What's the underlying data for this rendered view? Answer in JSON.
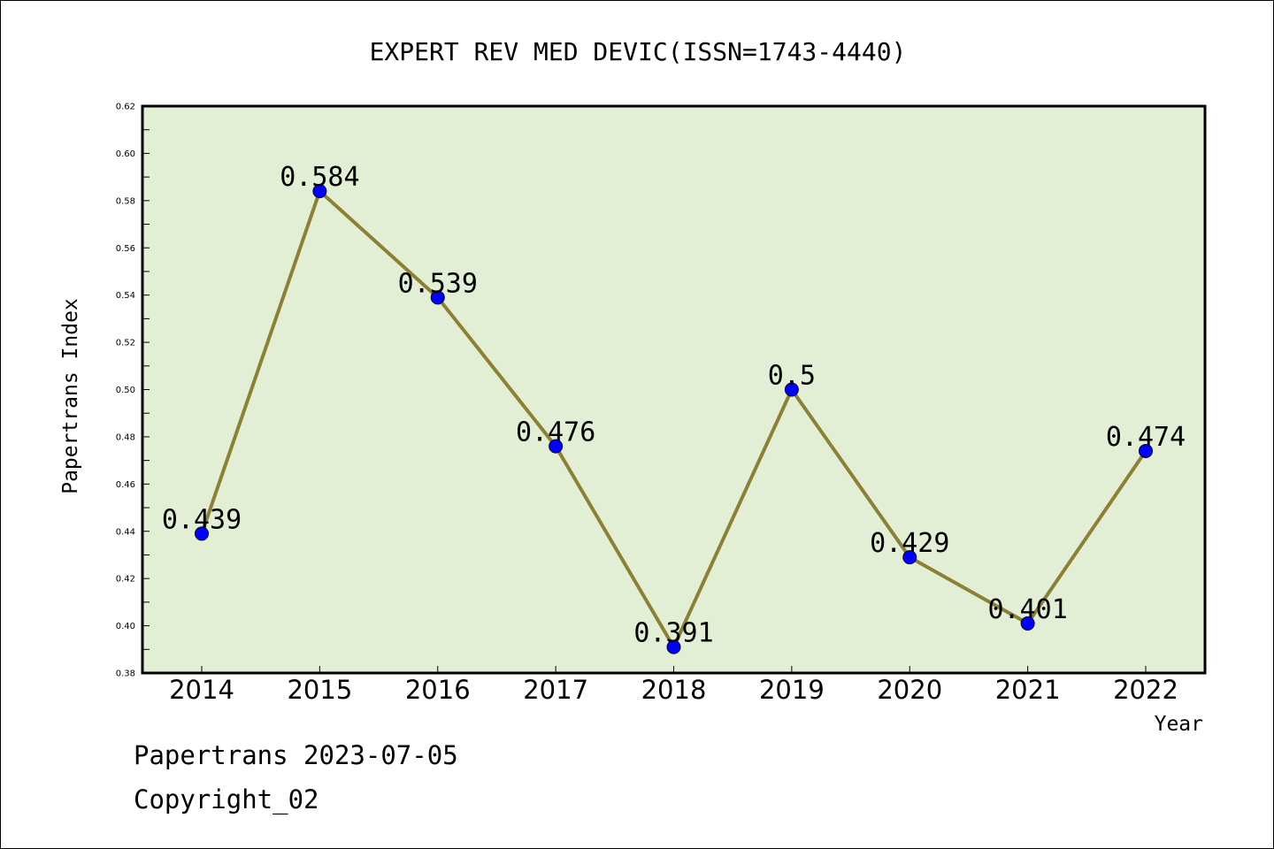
{
  "chart_data": {
    "type": "line",
    "title": "EXPERT REV MED DEVIC(ISSN=1743-4440)",
    "xlabel": "Year",
    "ylabel": "Papertrans Index",
    "categories": [
      "2014",
      "2015",
      "2016",
      "2017",
      "2018",
      "2019",
      "2020",
      "2021",
      "2022"
    ],
    "series": [
      {
        "values": [
          0.439,
          0.584,
          0.539,
          0.476,
          0.391,
          0.5,
          0.429,
          0.401,
          0.474
        ],
        "data_labels": [
          "0.439",
          "0.584",
          "0.539",
          "0.476",
          "0.391",
          "0.5",
          "0.429",
          "0.401",
          "0.474"
        ]
      }
    ],
    "ylim": [
      0.38,
      0.62
    ],
    "yticks": [
      0.38,
      0.4,
      0.42,
      0.44,
      0.46,
      0.48,
      0.5,
      0.52,
      0.54,
      0.56,
      0.58,
      0.6,
      0.62
    ],
    "ytick_labels": [
      "0.38",
      "0.40",
      "0.42",
      "0.44",
      "0.46",
      "0.48",
      "0.50",
      "0.52",
      "0.54",
      "0.56",
      "0.58",
      "0.60",
      "0.62"
    ],
    "grid": false,
    "legend": false,
    "colors": {
      "plot_background": "#e2efd5",
      "line": "#8c8035",
      "marker": "#0000ff"
    }
  },
  "footer": {
    "date_text": "Papertrans 2023-07-05",
    "copyright_text": "Copyright_02"
  }
}
